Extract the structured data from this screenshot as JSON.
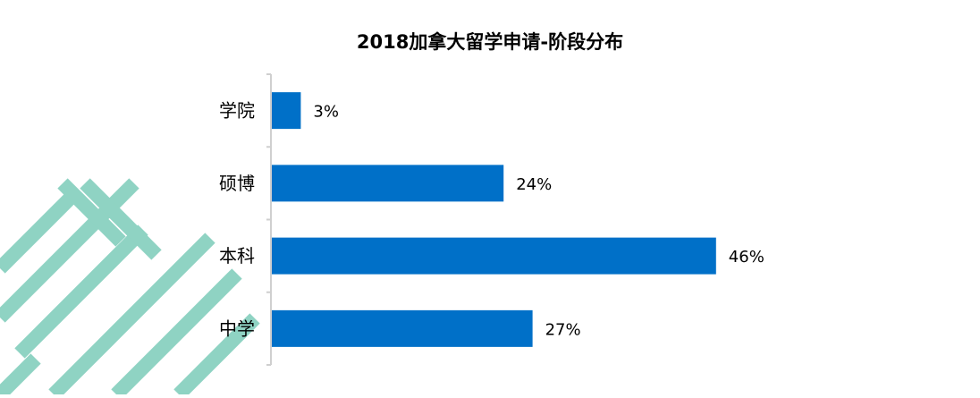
{
  "chart_data": {
    "type": "bar",
    "orientation": "horizontal",
    "title": "2018加拿大留学申请-阶段分布",
    "categories": [
      "学院",
      "硕博",
      "本科",
      "中学"
    ],
    "values": [
      3,
      24,
      46,
      27
    ],
    "value_labels": [
      "3%",
      "24%",
      "46%",
      "27%"
    ],
    "unit": "%",
    "xlim": [
      0,
      50
    ],
    "grid": false,
    "legend": "none",
    "bar_color": "#0070c8",
    "axis_color": "#cfcfcf"
  },
  "watermark": {
    "color": "#8fd3c3"
  }
}
